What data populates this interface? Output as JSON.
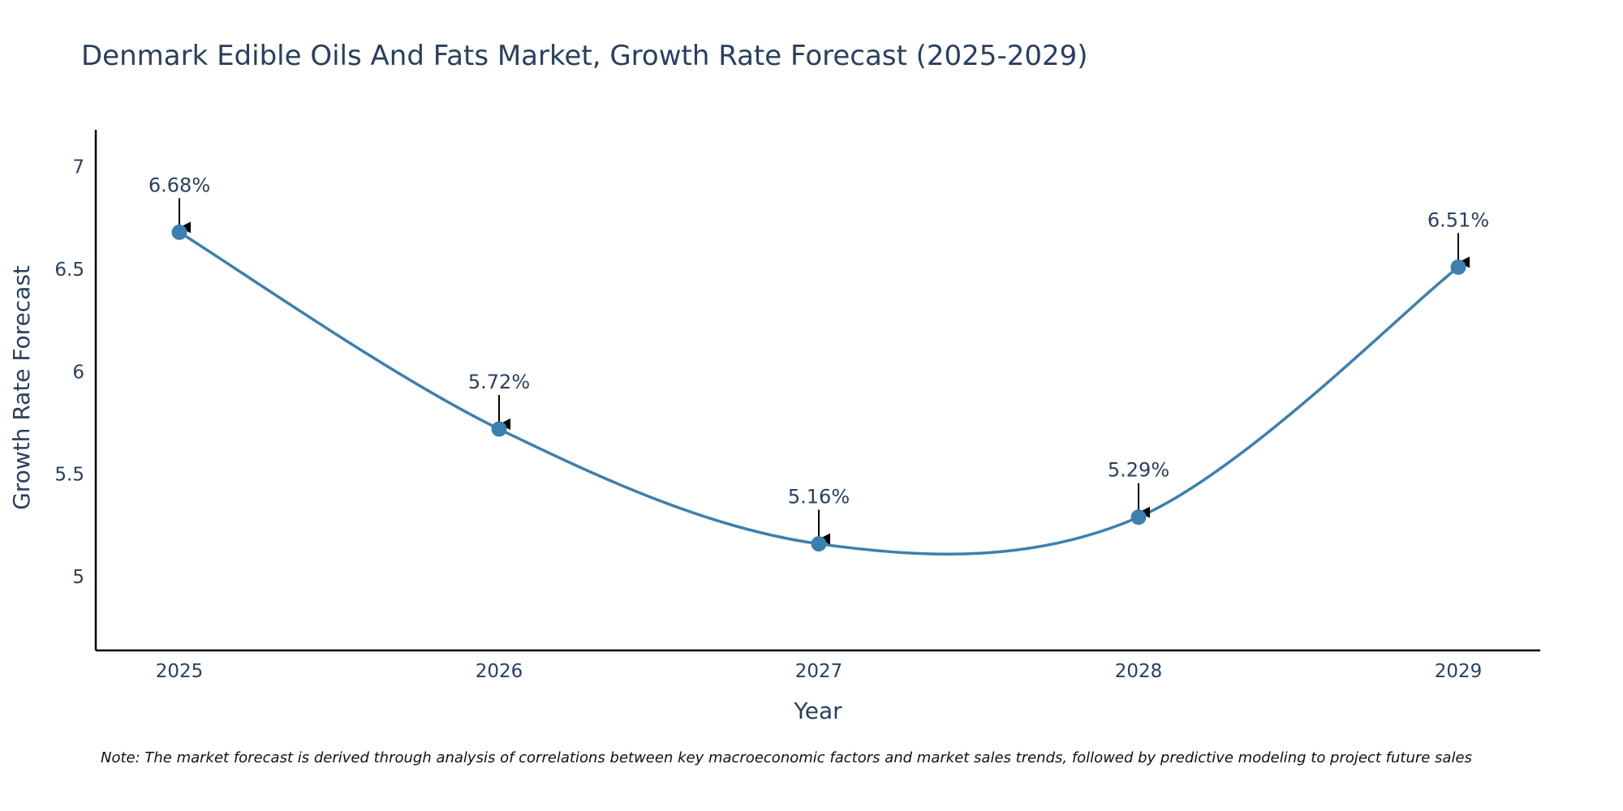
{
  "chart_data": {
    "type": "line",
    "title": "Denmark Edible Oils And Fats Market, Growth Rate Forecast (2025-2029)",
    "xlabel": "Year",
    "ylabel": "Growth Rate Forecast",
    "categories": [
      "2025",
      "2026",
      "2027",
      "2028",
      "2029"
    ],
    "values": [
      6.68,
      5.72,
      5.16,
      5.29,
      6.51
    ],
    "data_labels": [
      "6.68%",
      "5.72%",
      "5.16%",
      "5.29%",
      "6.51%"
    ],
    "yticks": [
      "5",
      "5.5",
      "6",
      "6.5",
      "7"
    ],
    "ylim": [
      4.64,
      7.18
    ],
    "line_shape": "spline",
    "grid": false,
    "series_color": "#3d7fae",
    "text_color": "#2a3f5f",
    "axis_color": "#000000",
    "annotation_arrows": true
  },
  "note": "Note: The market forecast is derived through analysis of correlations between key macroeconomic factors and market sales trends, followed by predictive modeling to project future sales"
}
